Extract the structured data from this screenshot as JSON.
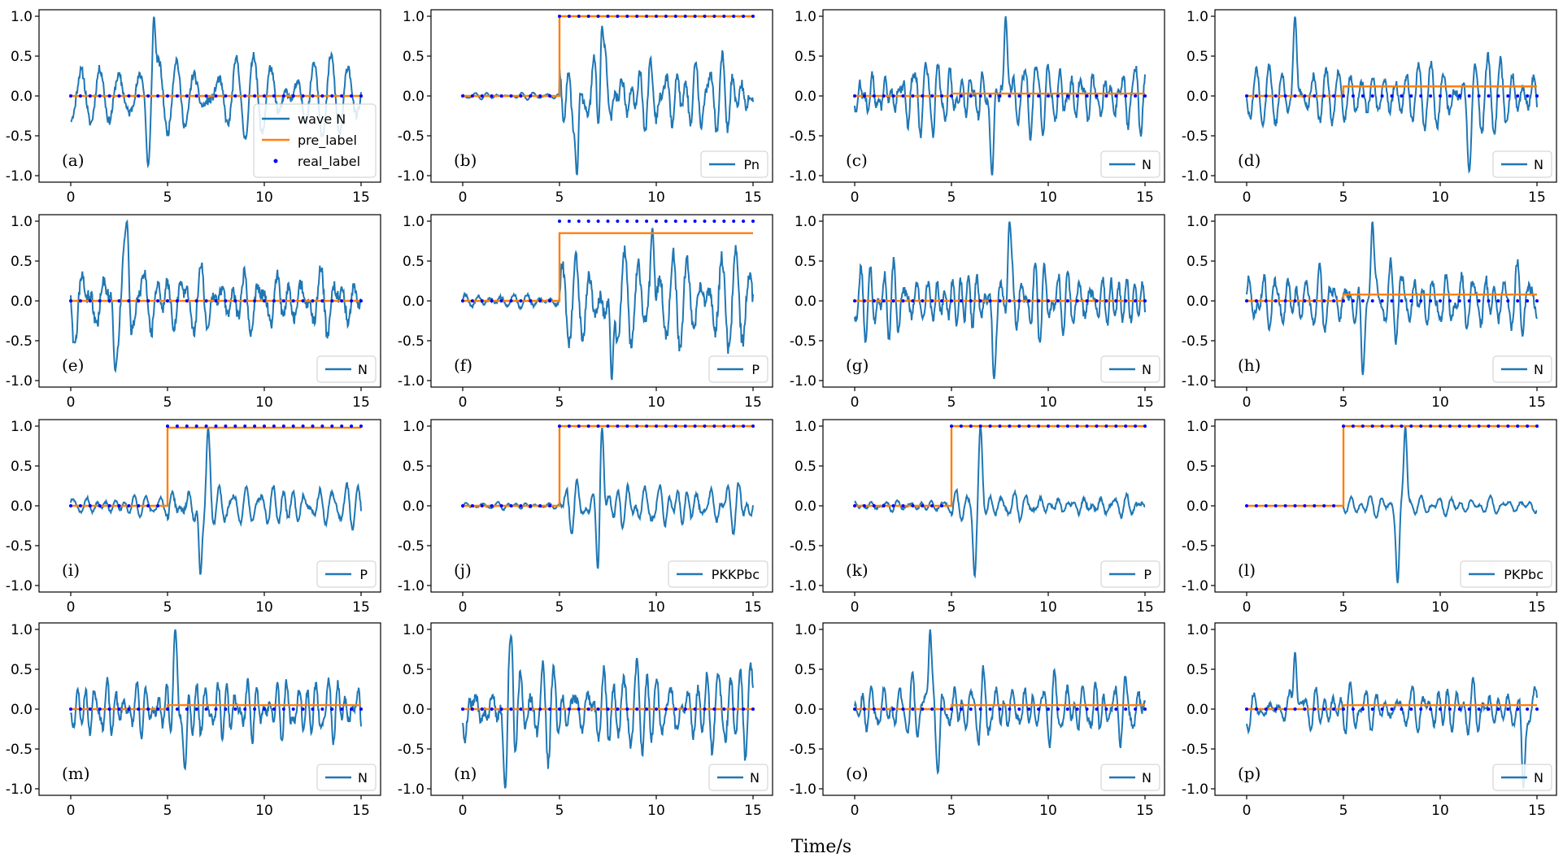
{
  "xlabel": "Time/s",
  "colors": {
    "wave": "#1f77b4",
    "pre_label": "#ff7f0e",
    "real_label": "#0000ff"
  },
  "legend_series": {
    "wave": "wave N",
    "pre": "pre_label",
    "real": "real_label"
  },
  "chart_data": [
    {
      "id": "a",
      "type": "line",
      "panel_label": "(a)",
      "legend": "wave N",
      "full_legend": true,
      "xlim": [
        0,
        15
      ],
      "ylim": [
        -1,
        1
      ],
      "xticks": [
        0,
        5,
        10,
        15
      ],
      "yticks": [
        -1.0,
        -0.5,
        0.0,
        0.5,
        1.0
      ],
      "onset": 5,
      "pre_level": 0.0,
      "real_level": 0,
      "seed": 11,
      "freq": 1.6,
      "pre_amp": 0.55,
      "post_amp": 0.55,
      "peak": {
        "t": 4.3,
        "v": 1.0
      },
      "trough": {
        "t": 4.0,
        "v": -0.88
      }
    },
    {
      "id": "b",
      "type": "line",
      "panel_label": "(b)",
      "legend": "Pn",
      "full_legend": false,
      "xlim": [
        0,
        15
      ],
      "ylim": [
        -1,
        1
      ],
      "xticks": [
        0,
        5,
        10,
        15
      ],
      "yticks": [
        -1.0,
        -0.5,
        0.0,
        0.5,
        1.0
      ],
      "onset": 5,
      "pre_level": 1.0,
      "real_level": 1,
      "seed": 12,
      "freq": 2.0,
      "pre_amp": 0.04,
      "post_amp": 0.6,
      "peak": {
        "t": 7.2,
        "v": 0.88
      },
      "trough": {
        "t": 5.9,
        "v": -1.0
      }
    },
    {
      "id": "c",
      "type": "line",
      "panel_label": "(c)",
      "legend": "N",
      "full_legend": false,
      "xlim": [
        0,
        15
      ],
      "ylim": [
        -1,
        1
      ],
      "xticks": [
        0,
        5,
        10,
        15
      ],
      "yticks": [
        -1.0,
        -0.5,
        0.0,
        0.5,
        1.0
      ],
      "onset": 5,
      "pre_level": 0.03,
      "real_level": 0,
      "seed": 13,
      "freq": 2.0,
      "pre_amp": 0.55,
      "post_amp": 0.55,
      "peak": {
        "t": 7.8,
        "v": 1.0
      },
      "trough": {
        "t": 7.1,
        "v": -1.0
      }
    },
    {
      "id": "d",
      "type": "line",
      "panel_label": "(d)",
      "legend": "N",
      "full_legend": false,
      "xlim": [
        0,
        15
      ],
      "ylim": [
        -1,
        1
      ],
      "xticks": [
        0,
        5,
        10,
        15
      ],
      "yticks": [
        -1.0,
        -0.5,
        0.0,
        0.5,
        1.0
      ],
      "onset": 5,
      "pre_level": 0.12,
      "real_level": 0,
      "seed": 14,
      "freq": 1.8,
      "pre_amp": 0.5,
      "post_amp": 0.55,
      "peak": {
        "t": 2.5,
        "v": 1.0
      },
      "trough": {
        "t": 11.5,
        "v": -0.95
      }
    },
    {
      "id": "e",
      "type": "line",
      "panel_label": "(e)",
      "legend": "N",
      "full_legend": false,
      "xlim": [
        0,
        15
      ],
      "ylim": [
        -1,
        1
      ],
      "xticks": [
        0,
        5,
        10,
        15
      ],
      "yticks": [
        -1.0,
        -0.5,
        0.0,
        0.5,
        1.0
      ],
      "onset": 5,
      "pre_level": 0.0,
      "real_level": 0,
      "seed": 15,
      "freq": 1.3,
      "pre_amp": 0.65,
      "post_amp": 0.6,
      "peak": {
        "t": 2.9,
        "v": 1.0
      },
      "trough": {
        "t": 2.3,
        "v": -0.88
      }
    },
    {
      "id": "f",
      "type": "line",
      "panel_label": "(f)",
      "legend": "P",
      "full_legend": false,
      "xlim": [
        0,
        15
      ],
      "ylim": [
        -1,
        1
      ],
      "xticks": [
        0,
        5,
        10,
        15
      ],
      "yticks": [
        -1.0,
        -0.5,
        0.0,
        0.5,
        1.0
      ],
      "onset": 5,
      "pre_level": 0.85,
      "real_level": 1,
      "seed": 16,
      "freq": 1.5,
      "pre_amp": 0.12,
      "post_amp": 0.7,
      "peak": {
        "t": 9.8,
        "v": 0.92
      },
      "trough": {
        "t": 7.7,
        "v": -1.0
      }
    },
    {
      "id": "g",
      "type": "line",
      "panel_label": "(g)",
      "legend": "N",
      "full_legend": false,
      "xlim": [
        0,
        15
      ],
      "ylim": [
        -1,
        1
      ],
      "xticks": [
        0,
        5,
        10,
        15
      ],
      "yticks": [
        -1.0,
        -0.5,
        0.0,
        0.5,
        1.0
      ],
      "onset": 5,
      "pre_level": 0.0,
      "real_level": 0,
      "seed": 17,
      "freq": 2.1,
      "pre_amp": 0.55,
      "post_amp": 0.55,
      "peak": {
        "t": 8.0,
        "v": 1.0
      },
      "trough": {
        "t": 7.2,
        "v": -0.98
      }
    },
    {
      "id": "h",
      "type": "line",
      "panel_label": "(h)",
      "legend": "N",
      "full_legend": false,
      "xlim": [
        0,
        15
      ],
      "ylim": [
        -1,
        1
      ],
      "xticks": [
        0,
        5,
        10,
        15
      ],
      "yticks": [
        -1.0,
        -0.5,
        0.0,
        0.5,
        1.0
      ],
      "onset": 5,
      "pre_level": 0.08,
      "real_level": 0,
      "seed": 18,
      "freq": 2.1,
      "pre_amp": 0.5,
      "post_amp": 0.55,
      "peak": {
        "t": 6.5,
        "v": 1.0
      },
      "trough": {
        "t": 6.0,
        "v": -0.93
      }
    },
    {
      "id": "i",
      "type": "line",
      "panel_label": "(i)",
      "legend": "P",
      "full_legend": false,
      "xlim": [
        0,
        15
      ],
      "ylim": [
        -1,
        1
      ],
      "xticks": [
        0,
        5,
        10,
        15
      ],
      "yticks": [
        -1.0,
        -0.5,
        0.0,
        0.5,
        1.0
      ],
      "onset": 5,
      "pre_level": 0.98,
      "real_level": 1,
      "seed": 19,
      "freq": 1.7,
      "pre_amp": 0.15,
      "post_amp": 0.3,
      "peak": {
        "t": 7.1,
        "v": 0.98
      },
      "trough": {
        "t": 6.7,
        "v": -0.87
      }
    },
    {
      "id": "j",
      "type": "line",
      "panel_label": "(j)",
      "legend": "PKKPbc",
      "full_legend": false,
      "xlim": [
        0,
        15
      ],
      "ylim": [
        -1,
        1
      ],
      "xticks": [
        0,
        5,
        10,
        15
      ],
      "yticks": [
        -1.0,
        -0.5,
        0.0,
        0.5,
        1.0
      ],
      "onset": 5,
      "pre_level": 1.0,
      "real_level": 1,
      "seed": 20,
      "freq": 1.5,
      "pre_amp": 0.06,
      "post_amp": 0.35,
      "peak": {
        "t": 7.2,
        "v": 0.98
      },
      "trough": {
        "t": 7.0,
        "v": -0.88
      }
    },
    {
      "id": "k",
      "type": "line",
      "panel_label": "(k)",
      "legend": "P",
      "full_legend": false,
      "xlim": [
        0,
        15
      ],
      "ylim": [
        -1,
        1
      ],
      "xticks": [
        0,
        5,
        10,
        15
      ],
      "yticks": [
        -1.0,
        -0.5,
        0.0,
        0.5,
        1.0
      ],
      "onset": 5,
      "pre_level": 1.0,
      "real_level": 1,
      "seed": 21,
      "freq": 1.7,
      "pre_amp": 0.1,
      "post_amp": 0.2,
      "peak": {
        "t": 6.5,
        "v": 1.0
      },
      "trough": {
        "t": 6.2,
        "v": -0.89
      }
    },
    {
      "id": "l",
      "type": "line",
      "panel_label": "(l)",
      "legend": "PKPbc",
      "full_legend": false,
      "xlim": [
        0,
        15
      ],
      "ylim": [
        -1,
        1
      ],
      "xticks": [
        0,
        5,
        10,
        15
      ],
      "yticks": [
        -1.0,
        -0.5,
        0.0,
        0.5,
        1.0
      ],
      "onset": 5,
      "pre_level": 1.0,
      "real_level": 1,
      "seed": 22,
      "freq": 1.4,
      "pre_amp": 0.0,
      "post_amp": 0.15,
      "peak": {
        "t": 8.2,
        "v": 1.0
      },
      "trough": {
        "t": 7.8,
        "v": -0.97
      }
    },
    {
      "id": "m",
      "type": "line",
      "panel_label": "(m)",
      "legend": "N",
      "full_legend": false,
      "xlim": [
        0,
        15
      ],
      "ylim": [
        -1,
        1
      ],
      "xticks": [
        0,
        5,
        10,
        15
      ],
      "yticks": [
        -1.0,
        -0.5,
        0.0,
        0.5,
        1.0
      ],
      "onset": 5,
      "pre_level": 0.05,
      "real_level": 0,
      "seed": 23,
      "freq": 1.8,
      "pre_amp": 0.4,
      "post_amp": 0.45,
      "peak": {
        "t": 5.4,
        "v": 1.0
      },
      "trough": {
        "t": 5.9,
        "v": -0.75
      }
    },
    {
      "id": "n",
      "type": "line",
      "panel_label": "(n)",
      "legend": "N",
      "full_legend": false,
      "xlim": [
        0,
        15
      ],
      "ylim": [
        -1,
        1
      ],
      "xticks": [
        0,
        5,
        10,
        15
      ],
      "yticks": [
        -1.0,
        -0.5,
        0.0,
        0.5,
        1.0
      ],
      "onset": 5,
      "pre_level": 0.0,
      "real_level": 0,
      "seed": 24,
      "freq": 1.5,
      "pre_amp": 0.75,
      "post_amp": 0.75,
      "peak": {
        "t": 2.5,
        "v": 0.92
      },
      "trough": {
        "t": 2.2,
        "v": -1.0
      }
    },
    {
      "id": "o",
      "type": "line",
      "panel_label": "(o)",
      "legend": "N",
      "full_legend": false,
      "xlim": [
        0,
        15
      ],
      "ylim": [
        -1,
        1
      ],
      "xticks": [
        0,
        5,
        10,
        15
      ],
      "yticks": [
        -1.0,
        -0.5,
        0.0,
        0.5,
        1.0
      ],
      "onset": 5,
      "pre_level": 0.05,
      "real_level": 0,
      "seed": 25,
      "freq": 2.4,
      "pre_amp": 0.5,
      "post_amp": 0.55,
      "peak": {
        "t": 3.9,
        "v": 1.0
      },
      "trough": {
        "t": 4.3,
        "v": -0.8
      }
    },
    {
      "id": "p",
      "type": "line",
      "panel_label": "(p)",
      "legend": "N",
      "full_legend": false,
      "xlim": [
        0,
        15
      ],
      "ylim": [
        -1,
        1
      ],
      "xticks": [
        0,
        5,
        10,
        15
      ],
      "yticks": [
        -1.0,
        -0.5,
        0.0,
        0.5,
        1.0
      ],
      "onset": 5,
      "pre_level": 0.05,
      "real_level": 0,
      "seed": 26,
      "freq": 2.0,
      "pre_amp": 0.35,
      "post_amp": 0.4,
      "peak": {
        "t": 2.5,
        "v": 0.72
      },
      "trough": {
        "t": 14.3,
        "v": -1.0
      }
    }
  ]
}
